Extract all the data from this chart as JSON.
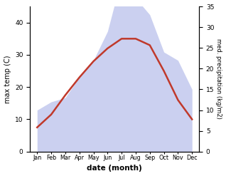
{
  "months": [
    "Jan",
    "Feb",
    "Mar",
    "Apr",
    "May",
    "Jun",
    "Jul",
    "Aug",
    "Sep",
    "Oct",
    "Nov",
    "Dec"
  ],
  "month_x": [
    1,
    2,
    3,
    4,
    5,
    6,
    7,
    8,
    9,
    10,
    11,
    12
  ],
  "temp_max": [
    7.5,
    11.5,
    17.5,
    23,
    28,
    32,
    35,
    35,
    33,
    25,
    16,
    10
  ],
  "precip_mm": [
    10,
    12,
    13,
    18,
    22,
    29,
    42,
    37,
    33,
    24,
    22,
    15
  ],
  "temp_ylim": [
    0,
    45
  ],
  "temp_yticks": [
    0,
    10,
    20,
    30,
    40
  ],
  "precip_ylim": [
    0,
    35
  ],
  "precip_yticks": [
    0,
    5,
    10,
    15,
    20,
    25,
    30,
    35
  ],
  "fill_color": "#b0b8e8",
  "fill_alpha": 0.65,
  "line_color": "#c0392b",
  "line_width": 1.8,
  "ylabel_left": "max temp (C)",
  "ylabel_right": "med. precipitation (kg/m2)",
  "xlabel": "date (month)",
  "bg_color": "#ffffff"
}
